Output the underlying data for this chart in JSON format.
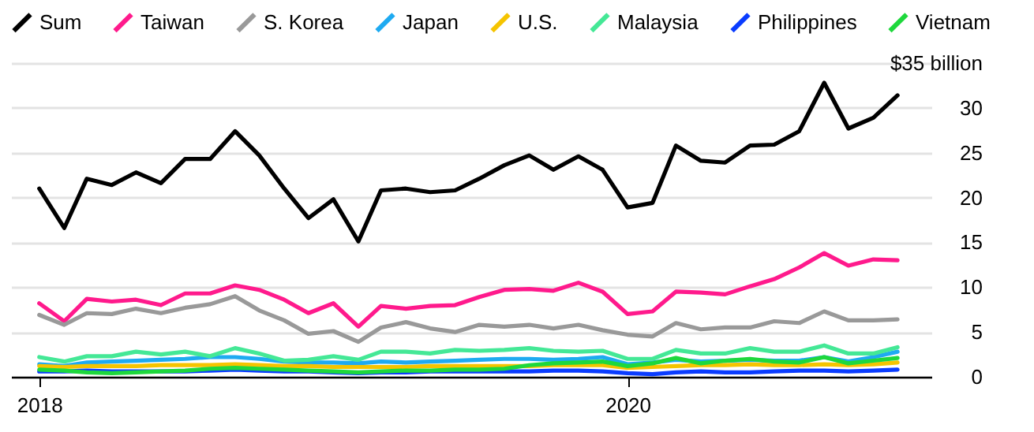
{
  "chart_data": {
    "type": "line",
    "legend": "top left",
    "grid": "y",
    "line_style": "solid",
    "x": [
      "2018-01",
      "2018-02",
      "2018-03",
      "2018-04",
      "2018-05",
      "2018-06",
      "2018-07",
      "2018-08",
      "2018-09",
      "2018-10",
      "2018-11",
      "2018-12",
      "2019-01",
      "2019-02",
      "2019-03",
      "2019-04",
      "2019-05",
      "2019-06",
      "2019-07",
      "2019-08",
      "2019-09",
      "2019-10",
      "2019-11",
      "2019-12",
      "2020-01",
      "2020-02",
      "2020-03",
      "2020-04",
      "2020-05",
      "2020-06",
      "2020-07",
      "2020-08",
      "2020-09",
      "2020-10",
      "2020-11",
      "2020-12"
    ],
    "xlim": [
      "2017-11-27",
      "2021-01-12"
    ],
    "xticks": [
      "2018",
      "2020"
    ],
    "ylim": [
      0,
      35
    ],
    "yticks": [
      0,
      5,
      10,
      15,
      20,
      25,
      30,
      {
        "value": 35,
        "label": "$35 billion"
      }
    ],
    "series": [
      {
        "name": "Sum",
        "color": "#000000",
        "values": [
          21.0,
          16.6,
          22.1,
          21.4,
          22.8,
          21.6,
          24.3,
          24.3,
          27.4,
          24.7,
          21.0,
          17.7,
          19.8,
          15.1,
          20.8,
          21.0,
          20.6,
          20.8,
          22.1,
          23.6,
          24.7,
          23.1,
          24.6,
          23.1,
          18.9,
          19.4,
          25.8,
          24.1,
          23.9,
          25.8,
          25.9,
          27.4,
          32.8,
          27.7,
          28.9,
          31.4
        ]
      },
      {
        "name": "Taiwan",
        "color": "#ff1a8c",
        "values": [
          8.2,
          6.2,
          8.7,
          8.4,
          8.6,
          8.0,
          9.3,
          9.3,
          10.2,
          9.7,
          8.6,
          7.1,
          8.2,
          5.6,
          7.9,
          7.6,
          7.9,
          8.0,
          8.9,
          9.7,
          9.8,
          9.6,
          10.5,
          9.5,
          7.0,
          7.3,
          9.5,
          9.4,
          9.2,
          10.1,
          10.9,
          12.2,
          13.8,
          12.4,
          13.1,
          13.0
        ]
      },
      {
        "name": "S. Korea",
        "color": "#999999",
        "values": [
          6.9,
          5.8,
          7.1,
          7.0,
          7.6,
          7.1,
          7.7,
          8.1,
          9.0,
          7.4,
          6.3,
          4.8,
          5.1,
          3.9,
          5.5,
          6.1,
          5.4,
          5.0,
          5.8,
          5.6,
          5.8,
          5.4,
          5.8,
          5.2,
          4.7,
          4.5,
          6.0,
          5.3,
          5.5,
          5.5,
          6.2,
          6.0,
          7.3,
          6.3,
          6.3,
          6.4
        ]
      },
      {
        "name": "Japan",
        "color": "#1eaaf1",
        "values": [
          1.4,
          1.2,
          1.6,
          1.7,
          1.8,
          1.9,
          2.0,
          2.2,
          2.2,
          2.0,
          1.7,
          1.6,
          1.6,
          1.5,
          1.7,
          1.6,
          1.7,
          1.8,
          1.9,
          2.0,
          2.0,
          1.9,
          2.0,
          2.2,
          1.4,
          1.6,
          1.9,
          1.7,
          1.8,
          1.9,
          1.8,
          1.8,
          2.2,
          1.7,
          2.2,
          2.8
        ]
      },
      {
        "name": "U.S.",
        "color": "#f5c400",
        "values": [
          1.2,
          1.1,
          1.2,
          1.2,
          1.2,
          1.3,
          1.3,
          1.3,
          1.4,
          1.3,
          1.2,
          1.2,
          1.1,
          1.1,
          1.1,
          1.1,
          1.2,
          1.2,
          1.2,
          1.2,
          1.2,
          1.3,
          1.3,
          1.3,
          1.0,
          1.1,
          1.2,
          1.3,
          1.3,
          1.4,
          1.3,
          1.3,
          1.4,
          1.3,
          1.4,
          1.6
        ]
      },
      {
        "name": "Malaysia",
        "color": "#44e896",
        "values": [
          2.2,
          1.7,
          2.3,
          2.3,
          2.8,
          2.5,
          2.8,
          2.3,
          3.2,
          2.6,
          1.8,
          1.9,
          2.3,
          1.9,
          2.8,
          2.8,
          2.6,
          3.0,
          2.9,
          3.0,
          3.2,
          2.9,
          2.8,
          2.9,
          2.0,
          2.0,
          3.0,
          2.6,
          2.6,
          3.2,
          2.8,
          2.8,
          3.5,
          2.6,
          2.6,
          3.3
        ]
      },
      {
        "name": "Philippines",
        "color": "#0a3cff",
        "values": [
          0.6,
          0.6,
          0.7,
          0.6,
          0.6,
          0.6,
          0.6,
          0.7,
          0.8,
          0.7,
          0.6,
          0.6,
          0.5,
          0.4,
          0.5,
          0.5,
          0.6,
          0.6,
          0.6,
          0.6,
          0.6,
          0.7,
          0.7,
          0.6,
          0.4,
          0.3,
          0.5,
          0.6,
          0.5,
          0.5,
          0.6,
          0.7,
          0.7,
          0.6,
          0.7,
          0.8
        ]
      },
      {
        "name": "Vietnam",
        "color": "#1ed83c",
        "values": [
          0.8,
          0.7,
          0.5,
          0.4,
          0.5,
          0.6,
          0.7,
          0.9,
          1.0,
          0.9,
          0.8,
          0.7,
          0.6,
          0.5,
          0.6,
          0.7,
          0.7,
          0.8,
          0.8,
          0.9,
          1.3,
          1.5,
          1.6,
          1.7,
          1.2,
          1.5,
          2.1,
          1.5,
          1.8,
          2.0,
          1.7,
          1.6,
          2.2,
          1.5,
          1.8,
          2.1
        ]
      }
    ]
  }
}
